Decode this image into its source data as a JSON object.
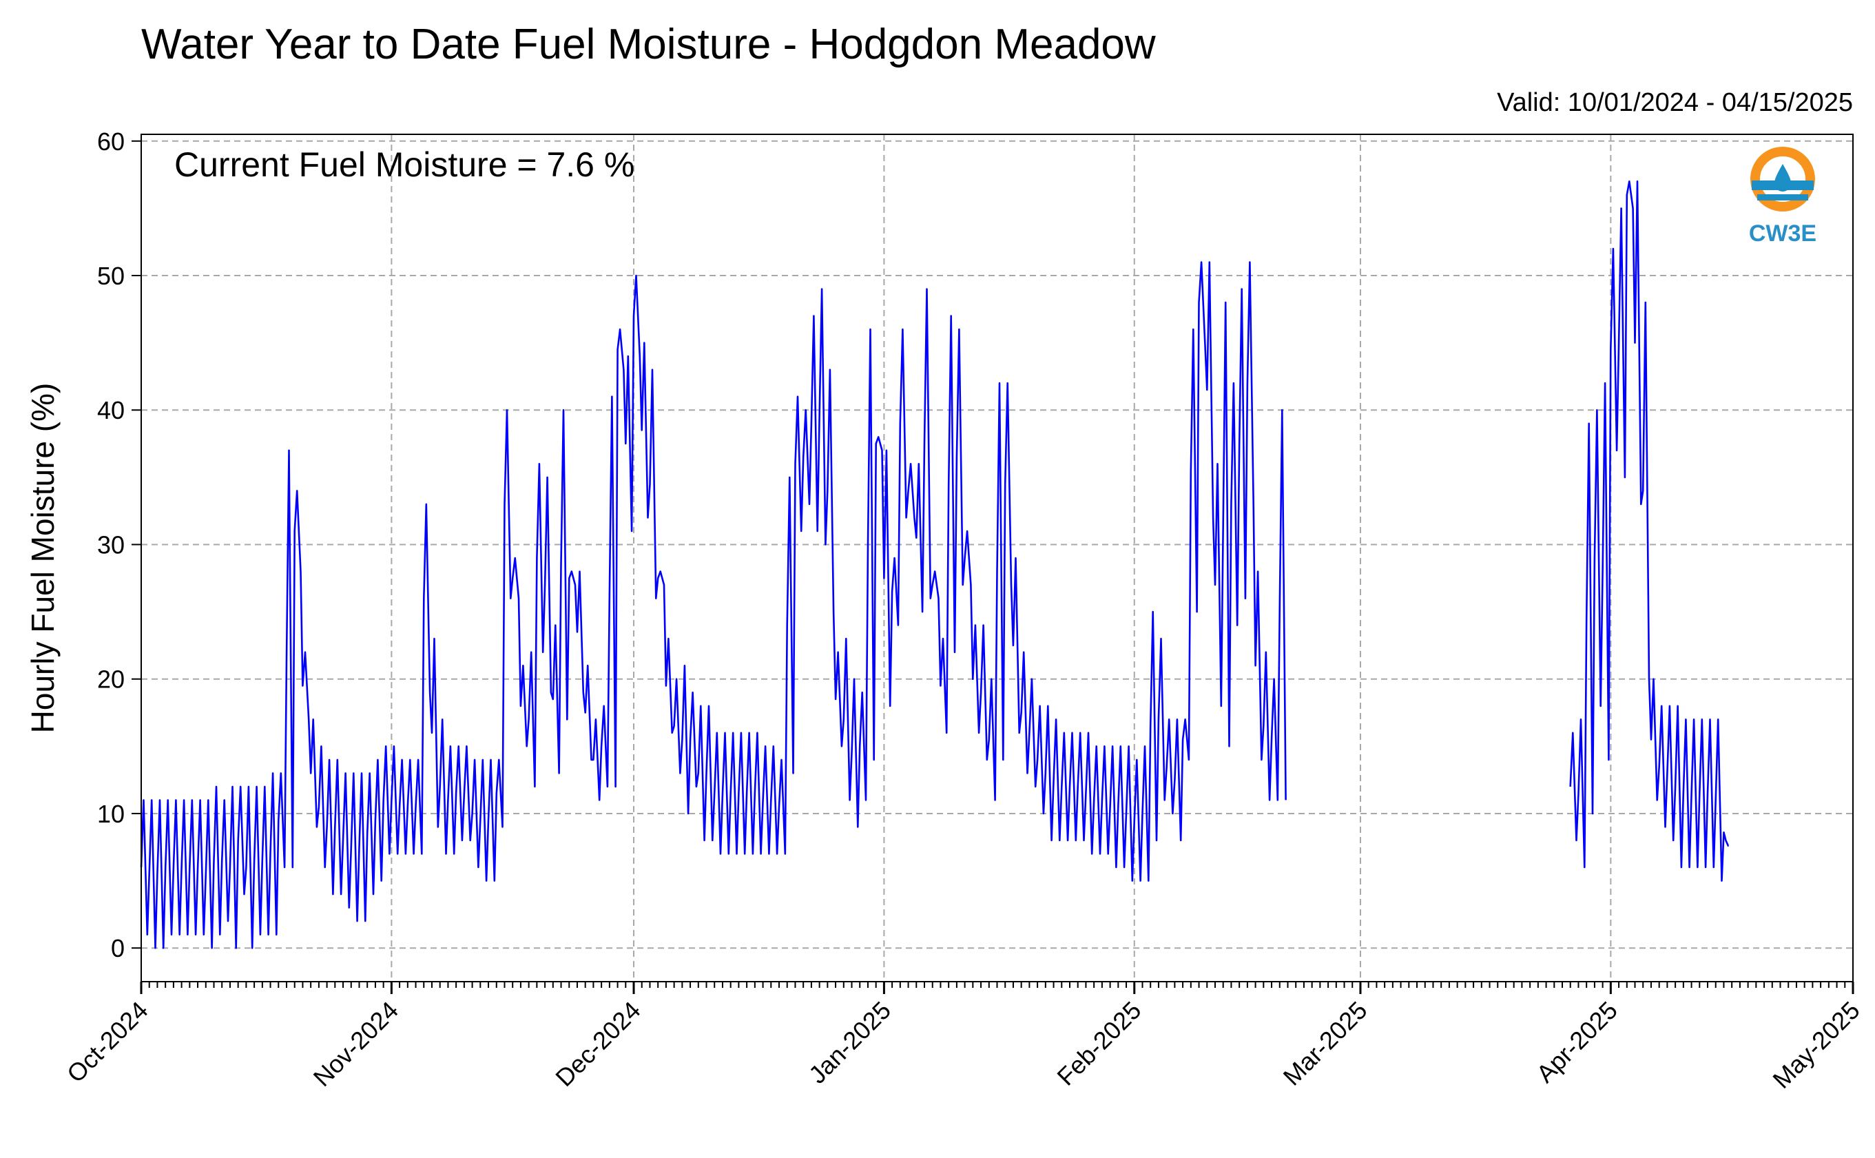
{
  "chart_data": {
    "type": "line",
    "title": "Water Year to Date Fuel Moisture - Hodgdon Meadow",
    "subtitle": "Valid: 10/01/2024 - 04/15/2025",
    "annotation": "Current Fuel Moisture = 7.6 %",
    "xlabel": "",
    "ylabel": "Hourly Fuel Moisture (%)",
    "ylim": [
      -2.5,
      60.5
    ],
    "xlim": [
      "2024-10-01",
      "2025-05-01"
    ],
    "yticks": [
      0,
      10,
      20,
      30,
      40,
      50,
      60
    ],
    "ytick_labels": [
      "0",
      "10",
      "20",
      "30",
      "40",
      "50",
      "60"
    ],
    "xticks": [
      "2024-10-01",
      "2024-11-01",
      "2024-12-01",
      "2025-01-01",
      "2025-02-01",
      "2025-03-01",
      "2025-04-01",
      "2025-05-01"
    ],
    "xtick_labels": [
      "Oct-2024",
      "Nov-2024",
      "Dec-2024",
      "Jan-2025",
      "Feb-2025",
      "Mar-2025",
      "Apr-2025",
      "May-2025"
    ],
    "grid": true,
    "series_color": "#0000ff",
    "series": [
      {
        "name": "",
        "values_daily_min_max": [
          [
            "2024-10-01",
            1,
            11
          ],
          [
            "2024-10-02",
            0,
            11
          ],
          [
            "2024-10-03",
            0,
            11
          ],
          [
            "2024-10-04",
            1,
            11
          ],
          [
            "2024-10-05",
            1,
            11
          ],
          [
            "2024-10-06",
            1,
            11
          ],
          [
            "2024-10-07",
            1,
            11
          ],
          [
            "2024-10-08",
            1,
            11
          ],
          [
            "2024-10-09",
            0,
            11
          ],
          [
            "2024-10-10",
            1,
            12
          ],
          [
            "2024-10-11",
            2,
            11
          ],
          [
            "2024-10-12",
            0,
            12
          ],
          [
            "2024-10-13",
            4,
            12
          ],
          [
            "2024-10-14",
            0,
            12
          ],
          [
            "2024-10-15",
            1,
            12
          ],
          [
            "2024-10-16",
            1,
            12
          ],
          [
            "2024-10-17",
            1,
            13
          ],
          [
            "2024-10-18",
            6,
            13
          ],
          [
            "2024-10-19",
            6,
            37
          ],
          [
            "2024-10-20",
            28,
            34
          ],
          [
            "2024-10-21",
            17,
            22
          ],
          [
            "2024-10-22",
            9,
            17
          ],
          [
            "2024-10-23",
            6,
            15
          ],
          [
            "2024-10-24",
            4,
            14
          ],
          [
            "2024-10-25",
            4,
            14
          ],
          [
            "2024-10-26",
            3,
            13
          ],
          [
            "2024-10-27",
            2,
            13
          ],
          [
            "2024-10-28",
            2,
            13
          ],
          [
            "2024-10-29",
            4,
            13
          ],
          [
            "2024-10-30",
            5,
            14
          ],
          [
            "2024-10-31",
            7,
            15
          ],
          [
            "2024-11-01",
            7,
            15
          ],
          [
            "2024-11-02",
            7,
            14
          ],
          [
            "2024-11-03",
            7,
            14
          ],
          [
            "2024-11-04",
            7,
            14
          ],
          [
            "2024-11-05",
            19,
            33
          ],
          [
            "2024-11-06",
            9,
            23
          ],
          [
            "2024-11-07",
            7,
            17
          ],
          [
            "2024-11-08",
            7,
            15
          ],
          [
            "2024-11-09",
            8,
            15
          ],
          [
            "2024-11-10",
            8,
            15
          ],
          [
            "2024-11-11",
            6,
            14
          ],
          [
            "2024-11-12",
            5,
            14
          ],
          [
            "2024-11-13",
            5,
            14
          ],
          [
            "2024-11-14",
            9,
            14
          ],
          [
            "2024-11-15",
            26,
            40
          ],
          [
            "2024-11-16",
            26,
            29
          ],
          [
            "2024-11-17",
            15,
            21
          ],
          [
            "2024-11-18",
            12,
            22
          ],
          [
            "2024-11-19",
            22,
            36
          ],
          [
            "2024-11-20",
            19,
            35
          ],
          [
            "2024-11-21",
            13,
            24
          ],
          [
            "2024-11-22",
            17,
            40
          ],
          [
            "2024-11-23",
            27,
            28
          ],
          [
            "2024-11-24",
            19,
            28
          ],
          [
            "2024-11-25",
            14,
            21
          ],
          [
            "2024-11-26",
            11,
            17
          ],
          [
            "2024-11-27",
            12,
            18
          ],
          [
            "2024-11-28",
            12,
            41
          ],
          [
            "2024-11-29",
            43,
            46
          ],
          [
            "2024-11-30",
            31,
            44
          ],
          [
            "2024-12-01",
            44,
            50
          ],
          [
            "2024-12-02",
            32,
            45
          ],
          [
            "2024-12-03",
            26,
            43
          ],
          [
            "2024-12-04",
            27,
            28
          ],
          [
            "2024-12-05",
            16,
            23
          ],
          [
            "2024-12-06",
            13,
            20
          ],
          [
            "2024-12-07",
            10,
            21
          ],
          [
            "2024-12-08",
            12,
            19
          ],
          [
            "2024-12-09",
            8,
            18
          ],
          [
            "2024-12-10",
            8,
            18
          ],
          [
            "2024-12-11",
            7,
            16
          ],
          [
            "2024-12-12",
            7,
            16
          ],
          [
            "2024-12-13",
            7,
            16
          ],
          [
            "2024-12-14",
            7,
            16
          ],
          [
            "2024-12-15",
            7,
            16
          ],
          [
            "2024-12-16",
            7,
            16
          ],
          [
            "2024-12-17",
            7,
            15
          ],
          [
            "2024-12-18",
            7,
            15
          ],
          [
            "2024-12-19",
            7,
            14
          ],
          [
            "2024-12-20",
            13,
            35
          ],
          [
            "2024-12-21",
            31,
            41
          ],
          [
            "2024-12-22",
            33,
            40
          ],
          [
            "2024-12-23",
            31,
            47
          ],
          [
            "2024-12-24",
            30,
            49
          ],
          [
            "2024-12-25",
            25,
            43
          ],
          [
            "2024-12-26",
            15,
            22
          ],
          [
            "2024-12-27",
            11,
            23
          ],
          [
            "2024-12-28",
            9,
            20
          ],
          [
            "2024-12-29",
            11,
            19
          ],
          [
            "2024-12-30",
            14,
            46
          ],
          [
            "2024-12-31",
            37,
            38
          ],
          [
            "2025-01-01",
            18,
            37
          ],
          [
            "2025-01-02",
            24,
            29
          ],
          [
            "2025-01-03",
            32,
            46
          ],
          [
            "2025-01-04",
            32,
            36
          ],
          [
            "2025-01-05",
            25,
            36
          ],
          [
            "2025-01-06",
            26,
            49
          ],
          [
            "2025-01-07",
            26,
            28
          ],
          [
            "2025-01-08",
            16,
            23
          ],
          [
            "2025-01-09",
            22,
            47
          ],
          [
            "2025-01-10",
            27,
            46
          ],
          [
            "2025-01-11",
            27,
            31
          ],
          [
            "2025-01-12",
            16,
            24
          ],
          [
            "2025-01-13",
            14,
            24
          ],
          [
            "2025-01-14",
            11,
            20
          ],
          [
            "2025-01-15",
            14,
            42
          ],
          [
            "2025-01-16",
            27,
            42
          ],
          [
            "2025-01-17",
            16,
            29
          ],
          [
            "2025-01-18",
            13,
            22
          ],
          [
            "2025-01-19",
            12,
            20
          ],
          [
            "2025-01-20",
            10,
            18
          ],
          [
            "2025-01-21",
            8,
            18
          ],
          [
            "2025-01-22",
            8,
            17
          ],
          [
            "2025-01-23",
            8,
            16
          ],
          [
            "2025-01-24",
            8,
            16
          ],
          [
            "2025-01-25",
            8,
            16
          ],
          [
            "2025-01-26",
            7,
            16
          ],
          [
            "2025-01-27",
            7,
            15
          ],
          [
            "2025-01-28",
            7,
            15
          ],
          [
            "2025-01-29",
            6,
            15
          ],
          [
            "2025-01-30",
            6,
            15
          ],
          [
            "2025-01-31",
            5,
            15
          ],
          [
            "2025-02-01",
            5,
            14
          ],
          [
            "2025-02-02",
            5,
            15
          ],
          [
            "2025-02-03",
            8,
            25
          ],
          [
            "2025-02-04",
            11,
            23
          ],
          [
            "2025-02-05",
            10,
            17
          ],
          [
            "2025-02-06",
            8,
            17
          ],
          [
            "2025-02-07",
            14,
            17
          ],
          [
            "2025-02-08",
            25,
            46
          ],
          [
            "2025-02-09",
            45,
            51
          ],
          [
            "2025-02-10",
            32,
            51
          ],
          [
            "2025-02-11",
            18,
            36
          ],
          [
            "2025-02-12",
            15,
            48
          ],
          [
            "2025-02-13",
            24,
            42
          ],
          [
            "2025-02-14",
            26,
            49
          ],
          [
            "2025-02-15",
            33,
            51
          ],
          [
            "2025-02-16",
            14,
            28
          ],
          [
            "2025-02-17",
            11,
            22
          ],
          [
            "2025-02-18",
            11,
            20
          ],
          [
            "2025-02-19",
            11,
            40
          ],
          [
            "2025-03-27",
            8,
            16
          ],
          [
            "2025-03-28",
            6,
            17
          ],
          [
            "2025-03-29",
            10,
            39
          ],
          [
            "2025-03-30",
            18,
            40
          ],
          [
            "2025-03-31",
            14,
            42
          ],
          [
            "2025-04-01",
            37,
            52
          ],
          [
            "2025-04-02",
            35,
            55
          ],
          [
            "2025-04-03",
            55,
            57
          ],
          [
            "2025-04-04",
            33,
            57
          ],
          [
            "2025-04-05",
            20,
            48
          ],
          [
            "2025-04-06",
            11,
            20
          ],
          [
            "2025-04-07",
            9,
            18
          ],
          [
            "2025-04-08",
            8,
            18
          ],
          [
            "2025-04-09",
            6,
            18
          ],
          [
            "2025-04-10",
            6,
            17
          ],
          [
            "2025-04-11",
            6,
            17
          ],
          [
            "2025-04-12",
            6,
            17
          ],
          [
            "2025-04-13",
            6,
            17
          ],
          [
            "2025-04-14",
            5,
            17
          ],
          [
            "2025-04-15",
            7.6,
            8
          ]
        ]
      }
    ]
  },
  "logo": {
    "text": "CW3E",
    "ring_color": "#f7941d",
    "wave_color": "#1b8fc6",
    "text_color": "#2a8fc6"
  }
}
